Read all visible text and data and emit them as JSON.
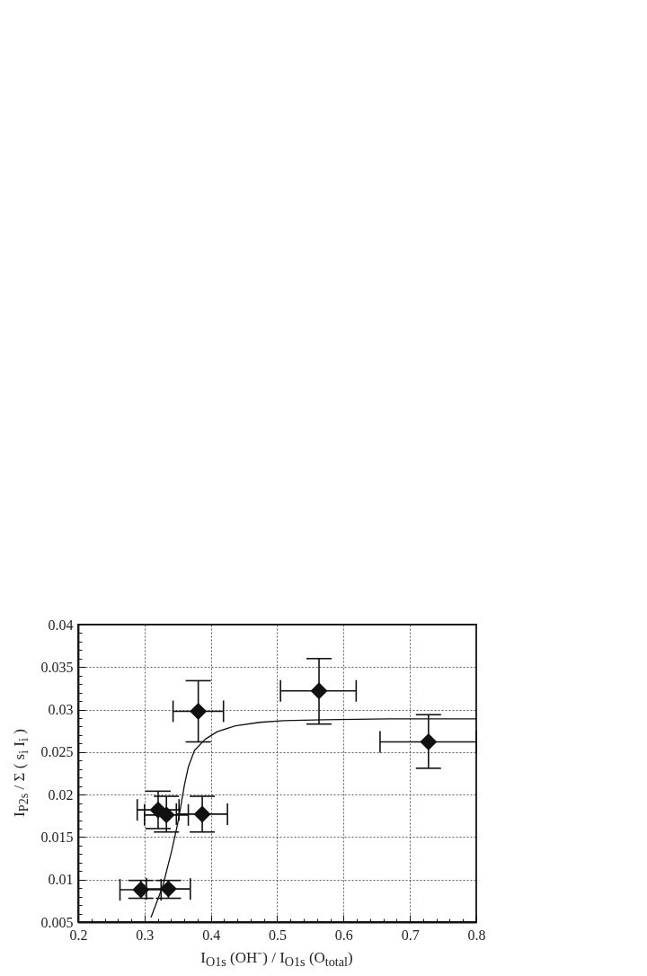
{
  "chart_data": {
    "type": "scatter",
    "xlabel": "I$_{O1s}$ (OH⁻) / I$_{O1s}$ (O$_{total}$)",
    "ylabel": "I$_{P2s}$ / Σ ( s$_{i}$ I$_{i}$ )",
    "xlim": [
      0.2,
      0.8
    ],
    "ylim": [
      0.005,
      0.04
    ],
    "xticks": [
      0.2,
      {
        "value": 0.22,
        "label": null
      },
      {
        "value": 0.24,
        "label": null
      },
      {
        "value": 0.26,
        "label": null
      },
      {
        "value": 0.28,
        "label": null
      },
      0.3,
      {
        "value": 0.32,
        "label": null
      },
      {
        "value": 0.34,
        "label": null
      },
      {
        "value": 0.36,
        "label": null
      },
      {
        "value": 0.38,
        "label": null
      },
      0.4,
      {
        "value": 0.42,
        "label": null
      },
      {
        "value": 0.44,
        "label": null
      },
      {
        "value": 0.46,
        "label": null
      },
      {
        "value": 0.48,
        "label": null
      },
      0.5,
      {
        "value": 0.52,
        "label": null
      },
      {
        "value": 0.54,
        "label": null
      },
      {
        "value": 0.56,
        "label": null
      },
      {
        "value": 0.58,
        "label": null
      },
      0.6,
      {
        "value": 0.62,
        "label": null
      },
      {
        "value": 0.64,
        "label": null
      },
      {
        "value": 0.66,
        "label": null
      },
      {
        "value": 0.68,
        "label": null
      },
      0.7,
      {
        "value": 0.72,
        "label": null
      },
      {
        "value": 0.74,
        "label": null
      },
      {
        "value": 0.76,
        "label": null
      },
      {
        "value": 0.78,
        "label": null
      },
      0.8
    ],
    "yticks": [
      0.005,
      {
        "value": 0.006,
        "label": null
      },
      {
        "value": 0.007,
        "label": null
      },
      {
        "value": 0.008,
        "label": null
      },
      {
        "value": 0.009,
        "label": null
      },
      0.01,
      {
        "value": 0.011,
        "label": null
      },
      {
        "value": 0.012,
        "label": null
      },
      {
        "value": 0.013,
        "label": null
      },
      {
        "value": 0.014,
        "label": null
      },
      0.015,
      {
        "value": 0.016,
        "label": null
      },
      {
        "value": 0.017,
        "label": null
      },
      {
        "value": 0.018,
        "label": null
      },
      {
        "value": 0.019,
        "label": null
      },
      0.02,
      {
        "value": 0.021,
        "label": null
      },
      {
        "value": 0.022,
        "label": null
      },
      {
        "value": 0.023,
        "label": null
      },
      {
        "value": 0.024,
        "label": null
      },
      0.025,
      {
        "value": 0.026,
        "label": null
      },
      {
        "value": 0.027,
        "label": null
      },
      {
        "value": 0.028,
        "label": null
      },
      {
        "value": 0.029,
        "label": null
      },
      0.03,
      {
        "value": 0.031,
        "label": null
      },
      {
        "value": 0.032,
        "label": null
      },
      {
        "value": 0.033,
        "label": null
      },
      {
        "value": 0.034,
        "label": null
      },
      0.035,
      {
        "value": 0.036,
        "label": null
      },
      {
        "value": 0.037,
        "label": null
      },
      {
        "value": 0.038,
        "label": null
      },
      {
        "value": 0.039,
        "label": null
      },
      0.04
    ],
    "grid": true,
    "series": [
      {
        "color": "#111111",
        "marker": "diamond",
        "x": [
          0.2945,
          0.3205,
          0.333,
          0.336,
          0.381,
          0.387,
          0.563,
          0.728
        ],
        "values": [
          0.0088,
          0.0182,
          0.0176,
          0.0089,
          0.0298,
          0.0177,
          0.0322,
          0.0262
        ],
        "errors": [
          [
            0.0078,
            0.0099
          ],
          [
            0.016,
            0.0204
          ],
          [
            0.0156,
            0.0198
          ],
          [
            0.0078,
            0.0099
          ],
          [
            0.0262,
            0.0334
          ],
          [
            0.0156,
            0.0198
          ],
          [
            0.0283,
            0.036
          ],
          [
            0.0231,
            0.0294
          ]
        ],
        "xerrors": [
          [
            0.263,
            0.325
          ],
          [
            0.289,
            0.352
          ],
          [
            0.3,
            0.366
          ],
          [
            0.303,
            0.369
          ],
          [
            0.343,
            0.419
          ],
          [
            0.348,
            0.425
          ],
          [
            0.505,
            0.619
          ],
          [
            0.655,
            0.8
          ]
        ]
      },
      {
        "type": "line",
        "color": "#111111",
        "marker": "none",
        "line_style": "solid",
        "x": [
          0.31,
          0.3274,
          0.341,
          0.35,
          0.3557,
          0.3603,
          0.3662,
          0.3753,
          0.3913,
          0.4096,
          0.437,
          0.4735,
          0.51,
          0.57,
          0.668,
          0.8
        ],
        "values": [
          0.0056,
          0.0092,
          0.0134,
          0.0166,
          0.0191,
          0.0212,
          0.0233,
          0.0252,
          0.0265,
          0.0274,
          0.0281,
          0.0285,
          0.0287,
          0.0288,
          0.0289,
          0.0289
        ]
      }
    ]
  }
}
